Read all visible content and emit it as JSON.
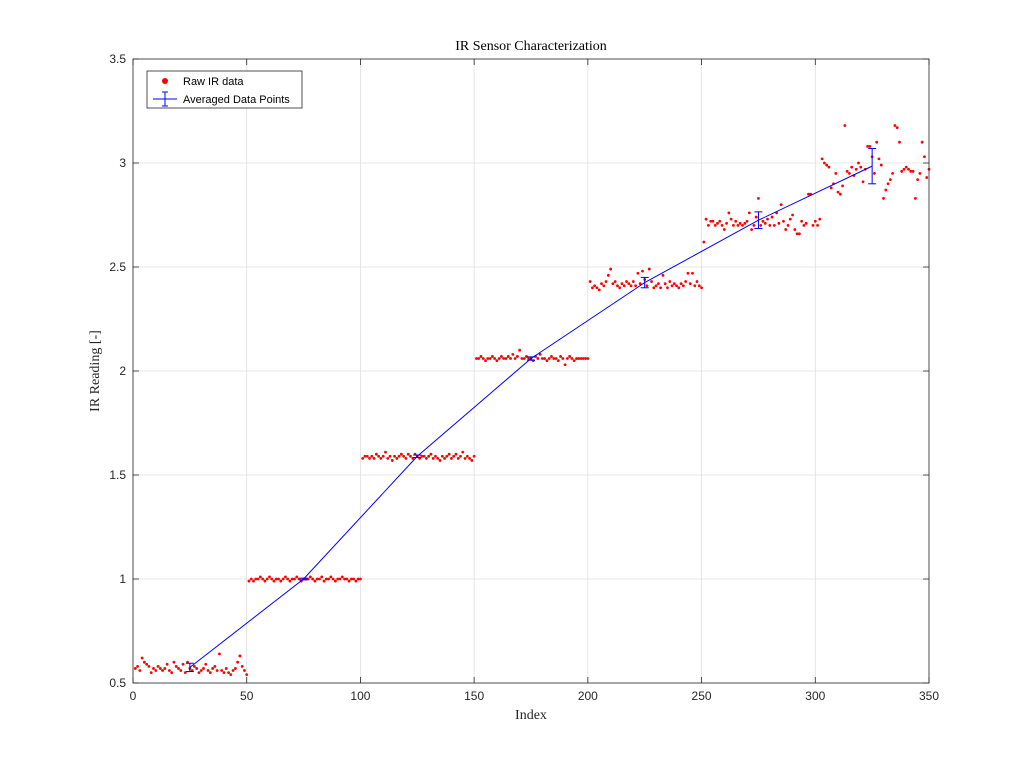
{
  "chart_data": {
    "type": "scatter",
    "title": "IR Sensor Characterization",
    "xlabel": "Index",
    "ylabel": "IR Reading [-]",
    "xlim": [
      0,
      350
    ],
    "ylim": [
      0.5,
      3.5
    ],
    "xticks": [
      "0",
      "50",
      "100",
      "150",
      "200",
      "250",
      "300",
      "350"
    ],
    "yticks": [
      "0.5",
      "1",
      "1.5",
      "2",
      "2.5",
      "3",
      "3.5"
    ],
    "grid": true,
    "legend_position": "top-left",
    "series": [
      {
        "name": "Raw IR data",
        "kind": "markers",
        "color": "#ff0000",
        "segments": [
          {
            "x_start": 1,
            "values": [
              0.57,
              0.58,
              0.56,
              0.62,
              0.6,
              0.59,
              0.58,
              0.55,
              0.57,
              0.56,
              0.58,
              0.57,
              0.56,
              0.57,
              0.59,
              0.56,
              0.55,
              0.6,
              0.58,
              0.57,
              0.56,
              0.59,
              0.55,
              0.6,
              0.57,
              0.56,
              0.58,
              0.57,
              0.55,
              0.56,
              0.57,
              0.59,
              0.56,
              0.55,
              0.57,
              0.58,
              0.56,
              0.64,
              0.56,
              0.55,
              0.57,
              0.55,
              0.54,
              0.56,
              0.57,
              0.6,
              0.63,
              0.58,
              0.56,
              0.54
            ]
          },
          {
            "x_start": 51,
            "values": [
              0.99,
              1.0,
              0.99,
              1.0,
              1.0,
              1.01,
              1.0,
              0.99,
              1.0,
              1.01,
              1.0,
              0.99,
              1.0,
              1.0,
              0.99,
              1.0,
              1.01,
              1.0,
              0.99,
              1.0,
              1.0,
              1.01,
              1.0,
              0.99,
              1.0,
              1.0,
              1.0,
              1.01,
              1.0,
              0.99,
              1.0,
              1.0,
              1.01,
              0.99,
              1.0,
              1.0,
              1.01,
              1.0,
              0.99,
              1.0,
              1.0,
              1.01,
              1.0,
              1.0,
              0.99,
              1.0,
              1.0,
              0.99,
              1.0,
              1.0
            ]
          },
          {
            "x_start": 101,
            "values": [
              1.58,
              1.59,
              1.59,
              1.58,
              1.59,
              1.58,
              1.6,
              1.59,
              1.58,
              1.59,
              1.61,
              1.58,
              1.59,
              1.57,
              1.59,
              1.58,
              1.59,
              1.6,
              1.59,
              1.58,
              1.6,
              1.59,
              1.58,
              1.6,
              1.59,
              1.58,
              1.59,
              1.59,
              1.58,
              1.59,
              1.6,
              1.58,
              1.59,
              1.58,
              1.57,
              1.59,
              1.58,
              1.59,
              1.6,
              1.58,
              1.59,
              1.6,
              1.58,
              1.59,
              1.61,
              1.58,
              1.59,
              1.58,
              1.57,
              1.59
            ]
          },
          {
            "x_start": 151,
            "values": [
              2.06,
              2.06,
              2.07,
              2.06,
              2.05,
              2.06,
              2.06,
              2.07,
              2.06,
              2.05,
              2.06,
              2.07,
              2.06,
              2.06,
              2.07,
              2.06,
              2.08,
              2.06,
              2.07,
              2.1,
              2.06,
              2.06,
              2.07,
              2.06,
              2.06,
              2.05,
              2.07,
              2.06,
              2.08,
              2.06,
              2.06,
              2.05,
              2.06,
              2.07,
              2.06,
              2.06,
              2.05,
              2.07,
              2.06,
              2.03,
              2.06,
              2.07,
              2.06,
              2.05,
              2.06,
              2.06,
              2.06,
              2.06,
              2.06,
              2.06
            ]
          },
          {
            "x_start": 201,
            "values": [
              2.43,
              2.4,
              2.41,
              2.4,
              2.39,
              2.42,
              2.41,
              2.43,
              2.46,
              2.49,
              2.42,
              2.43,
              2.41,
              2.4,
              2.42,
              2.41,
              2.43,
              2.42,
              2.41,
              2.43,
              2.41,
              2.47,
              2.42,
              2.48,
              2.44,
              2.41,
              2.49,
              2.43,
              2.4,
              2.41,
              2.42,
              2.4,
              2.46,
              2.42,
              2.4,
              2.43,
              2.41,
              2.42,
              2.41,
              2.4,
              2.42,
              2.41,
              2.43,
              2.47,
              2.42,
              2.47,
              2.41,
              2.43,
              2.41,
              2.4
            ]
          },
          {
            "x_start": 251,
            "values": [
              2.62,
              2.73,
              2.7,
              2.72,
              2.72,
              2.7,
              2.71,
              2.72,
              2.7,
              2.68,
              2.71,
              2.76,
              2.73,
              2.7,
              2.72,
              2.7,
              2.71,
              2.7,
              2.71,
              2.72,
              2.76,
              2.68,
              2.7,
              2.74,
              2.83,
              2.7,
              2.72,
              2.71,
              2.73,
              2.7,
              2.74,
              2.7,
              2.76,
              2.71,
              2.8,
              2.72,
              2.68,
              2.7,
              2.73,
              2.75,
              2.68,
              2.66,
              2.66,
              2.72,
              2.7,
              2.71,
              2.85,
              2.85,
              2.7,
              2.72
            ]
          },
          {
            "x_start": 301,
            "values": [
              2.7,
              2.73,
              3.02,
              3.0,
              2.99,
              2.98,
              2.88,
              2.9,
              2.95,
              2.86,
              2.85,
              2.89,
              3.18,
              2.96,
              2.95,
              2.98,
              2.94,
              2.97,
              3.0,
              2.98,
              2.91,
              2.97,
              3.08,
              3.08,
              3.03,
              2.95,
              3.1,
              3.02,
              2.99,
              2.83,
              2.87,
              2.9,
              2.92,
              2.95,
              3.18,
              3.17,
              3.1,
              2.96,
              2.97,
              2.98,
              2.97,
              2.96,
              2.96,
              2.83,
              2.92,
              2.95,
              3.1,
              3.03,
              2.93,
              2.97
            ]
          }
        ]
      },
      {
        "name": "Averaged Data Points",
        "kind": "line-errorbar",
        "color": "#0000ff",
        "x": [
          25,
          75,
          125,
          175,
          225,
          275,
          325
        ],
        "y": [
          0.575,
          1.0,
          1.59,
          2.06,
          2.425,
          2.725,
          2.985
        ],
        "error": [
          0.02,
          0.004,
          0.006,
          0.008,
          0.025,
          0.04,
          0.085
        ]
      }
    ]
  }
}
